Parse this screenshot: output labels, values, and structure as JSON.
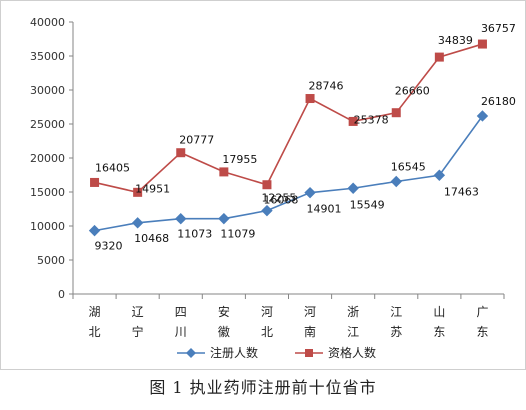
{
  "chart_data": {
    "type": "line",
    "categories": [
      "湖北",
      "辽宁",
      "四川",
      "安徽",
      "河北",
      "河南",
      "浙江",
      "江苏",
      "山东",
      "广东"
    ],
    "series": [
      {
        "name": "注册人数",
        "color": "#4a7ebb",
        "marker": "diamond",
        "values": [
          9320,
          10468,
          11073,
          11079,
          12255,
          14901,
          15549,
          16545,
          17463,
          26180
        ]
      },
      {
        "name": "资格人数",
        "color": "#be4b48",
        "marker": "square",
        "values": [
          16405,
          14951,
          20777,
          17955,
          16068,
          28746,
          25378,
          26660,
          34839,
          36757
        ]
      }
    ],
    "ylim": [
      0,
      40000
    ],
    "yticks": [
      0,
      5000,
      10000,
      15000,
      20000,
      25000,
      30000,
      35000,
      40000
    ],
    "grid": false,
    "legend": "bottom",
    "xlabel": "",
    "ylabel": ""
  },
  "caption": "图 1  执业药师注册前十位省市"
}
